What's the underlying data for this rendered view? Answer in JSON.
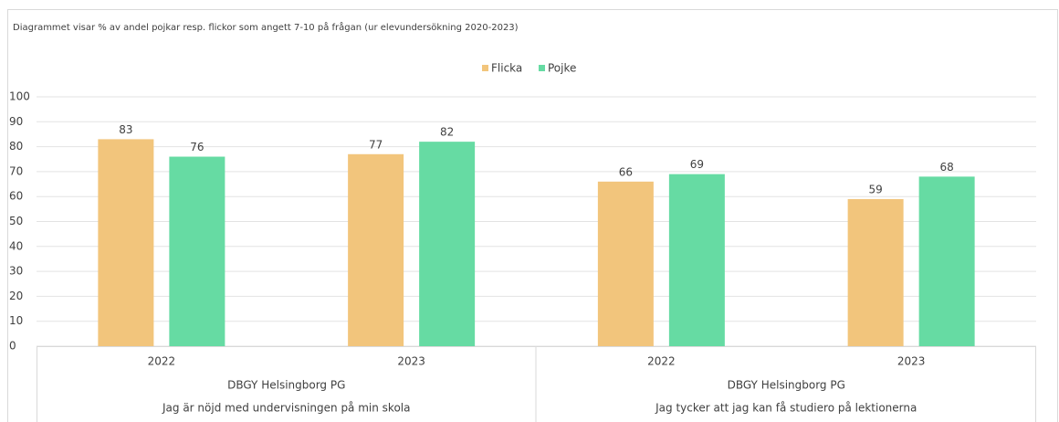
{
  "chart_data": {
    "type": "bar",
    "title": "Diagrammet visar % av andel pojkar resp. flickor som angett 7-10 på frågan (ur elevundersökning 2020-2023)",
    "groups": [
      {
        "name": "DBGY Helsingborg PG",
        "question": "Jag är nöjd med undervisningen på min skola",
        "categories": [
          "2022",
          "2023"
        ]
      },
      {
        "name": "DBGY Helsingborg PG",
        "question": "Jag tycker att jag kan få studiero på lektionerna",
        "categories": [
          "2022",
          "2023"
        ]
      }
    ],
    "series": [
      {
        "name": "Flicka",
        "color": "#f2c57c",
        "values": [
          83,
          77,
          66,
          59
        ]
      },
      {
        "name": "Pojke",
        "color": "#66dba3",
        "values": [
          76,
          82,
          69,
          68
        ]
      }
    ],
    "ylim": [
      0,
      100
    ],
    "yticks": [
      0,
      10,
      20,
      30,
      40,
      50,
      60,
      70,
      80,
      90,
      100
    ],
    "grid": true,
    "legend": "top"
  }
}
